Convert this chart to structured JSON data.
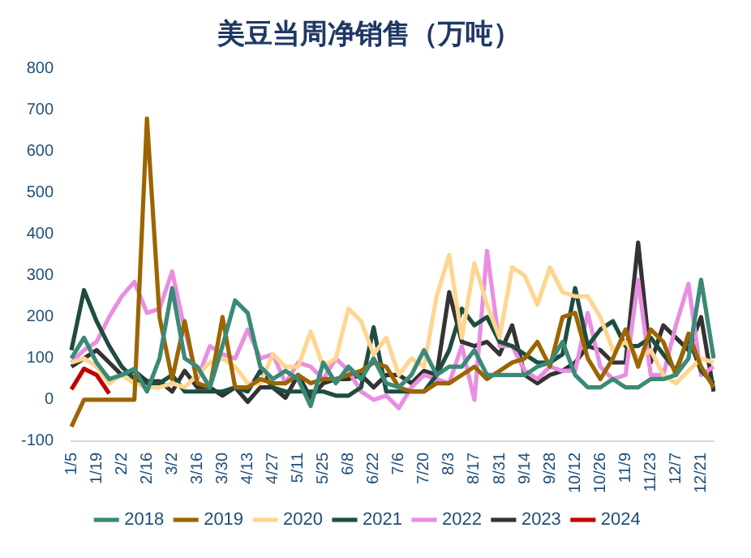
{
  "chart_data": {
    "type": "line",
    "title": "美豆当周净销售（万吨）",
    "categories": [
      "1/5",
      null,
      "1/19",
      null,
      "2/2",
      null,
      "2/16",
      null,
      "3/2",
      null,
      "3/16",
      null,
      "3/30",
      null,
      "4/13",
      null,
      "4/27",
      null,
      "5/11",
      null,
      "5/25",
      null,
      "6/8",
      null,
      "6/22",
      null,
      "7/6",
      null,
      "7/20",
      null,
      "8/3",
      null,
      "8/17",
      null,
      "8/31",
      null,
      "9/14",
      null,
      "9/28",
      null,
      "10/12",
      null,
      "10/26",
      null,
      "11/9",
      null,
      "11/23",
      null,
      "12/7",
      null,
      "12/21",
      null
    ],
    "series": [
      {
        "name": "2018",
        "color": "#3a8a77",
        "values": [
          100,
          150,
          90,
          50,
          60,
          75,
          20,
          100,
          270,
          100,
          80,
          30,
          130,
          240,
          210,
          80,
          50,
          70,
          50,
          -15,
          90,
          40,
          80,
          50,
          100,
          40,
          30,
          60,
          120,
          60,
          80,
          80,
          120,
          60,
          60,
          60,
          60,
          80,
          90,
          140,
          60,
          30,
          30,
          50,
          30,
          30,
          50,
          50,
          60,
          100,
          290,
          100
        ]
      },
      {
        "name": "2019",
        "color": "#9c6500",
        "values": [
          -65,
          0,
          0,
          0,
          0,
          0,
          680,
          200,
          50,
          190,
          40,
          30,
          200,
          30,
          30,
          50,
          40,
          40,
          60,
          40,
          50,
          50,
          60,
          70,
          90,
          80,
          30,
          20,
          20,
          40,
          40,
          60,
          80,
          50,
          70,
          90,
          100,
          140,
          80,
          200,
          210,
          100,
          50,
          100,
          170,
          80,
          170,
          140,
          60,
          160,
          80,
          30
        ]
      },
      {
        "name": "2020",
        "color": "#ffd590",
        "values": [
          90,
          100,
          80,
          40,
          60,
          40,
          30,
          30,
          40,
          30,
          60,
          90,
          100,
          80,
          40,
          40,
          110,
          80,
          80,
          165,
          80,
          100,
          220,
          190,
          110,
          150,
          60,
          100,
          80,
          250,
          350,
          150,
          330,
          230,
          150,
          320,
          300,
          230,
          320,
          260,
          250,
          250,
          200,
          120,
          140,
          100,
          120,
          60,
          40,
          70,
          100,
          90
        ]
      },
      {
        "name": "2021",
        "color": "#1e4d3f",
        "values": [
          120,
          265,
          190,
          130,
          80,
          50,
          40,
          40,
          60,
          20,
          20,
          20,
          20,
          30,
          20,
          70,
          30,
          20,
          20,
          20,
          20,
          10,
          10,
          30,
          175,
          20,
          20,
          20,
          20,
          60,
          120,
          220,
          180,
          200,
          140,
          130,
          110,
          90,
          90,
          110,
          270,
          130,
          170,
          190,
          130,
          130,
          150,
          110,
          70,
          150,
          70,
          40
        ]
      },
      {
        "name": "2022",
        "color": "#e98ee0",
        "values": [
          90,
          120,
          140,
          200,
          250,
          285,
          210,
          220,
          310,
          170,
          50,
          130,
          110,
          100,
          170,
          100,
          110,
          40,
          90,
          80,
          50,
          100,
          70,
          20,
          0,
          10,
          -20,
          30,
          60,
          50,
          40,
          130,
          0,
          360,
          130,
          130,
          70,
          50,
          80,
          70,
          70,
          210,
          80,
          50,
          60,
          290,
          60,
          60,
          180,
          280,
          60,
          80
        ]
      },
      {
        "name": "2023",
        "color": "#333333",
        "values": [
          80,
          100,
          120,
          90,
          60,
          70,
          45,
          45,
          20,
          70,
          30,
          30,
          10,
          30,
          -5,
          30,
          30,
          5,
          60,
          5,
          40,
          50,
          50,
          60,
          30,
          60,
          60,
          40,
          70,
          60,
          260,
          140,
          130,
          140,
          110,
          180,
          60,
          40,
          60,
          70,
          90,
          130,
          120,
          90,
          90,
          380,
          90,
          180,
          150,
          120,
          200,
          20
        ]
      },
      {
        "name": "2024",
        "color": "#c00000",
        "values": [
          25,
          75,
          60,
          15,
          null,
          null,
          null,
          null,
          null,
          null,
          null,
          null,
          null,
          null,
          null,
          null,
          null,
          null,
          null,
          null,
          null,
          null,
          null,
          null,
          null,
          null,
          null,
          null,
          null,
          null,
          null,
          null,
          null,
          null,
          null,
          null,
          null,
          null,
          null,
          null,
          null,
          null,
          null,
          null,
          null,
          null,
          null,
          null,
          null,
          null,
          null,
          null
        ]
      }
    ],
    "ylim": [
      -100,
      800
    ],
    "yticks": [
      -100,
      0,
      100,
      200,
      300,
      400,
      500,
      600,
      700,
      800
    ],
    "grid": false,
    "legend": "bottom",
    "marker": "none",
    "line_style": "solid"
  }
}
